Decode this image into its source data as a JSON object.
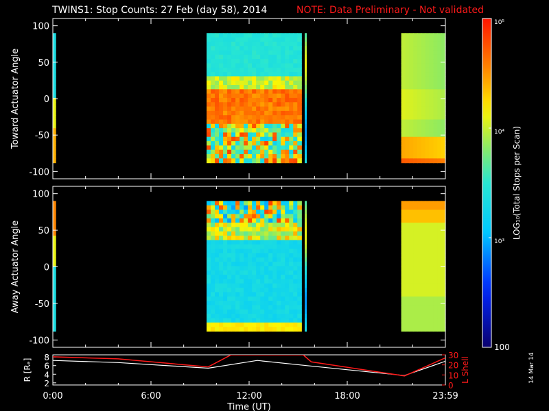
{
  "header": {
    "title": "TWINS1: Stop Counts: 27 Feb (day  58), 2014",
    "note": "NOTE: Data Preliminary - Not validated"
  },
  "side_date": "14 Mar 14",
  "colors": {
    "background": "#000000",
    "axes": "#ffffff",
    "note": "#ff1a1a",
    "r_line": "#ffffff",
    "l_line": "#ff1a1a"
  },
  "chart_data": [
    {
      "type": "heatmap",
      "title": "",
      "ylabel": "Toward Actuator Angle",
      "xlim": [
        0,
        24
      ],
      "ylim": [
        -110,
        110
      ],
      "yticks": [
        100,
        50,
        0,
        -50,
        -100
      ],
      "data_blocks": [
        {
          "x": [
            0.0,
            0.17
          ],
          "y": [
            -88,
            90
          ],
          "level": "high-bottom"
        },
        {
          "x": [
            9.4,
            15.2
          ],
          "y": [
            -88,
            90
          ],
          "level": "mixed"
        },
        {
          "x": [
            15.4,
            15.5
          ],
          "y": [
            -88,
            90
          ],
          "level": "mid"
        },
        {
          "x": [
            21.3,
            24.0
          ],
          "y": [
            -88,
            90
          ],
          "level": "warm"
        }
      ]
    },
    {
      "type": "heatmap",
      "title": "",
      "ylabel": "Away Actuator Angle",
      "xlim": [
        0,
        24
      ],
      "ylim": [
        -110,
        110
      ],
      "yticks": [
        100,
        50,
        0,
        -50,
        -100
      ],
      "data_blocks": [
        {
          "x": [
            0.0,
            0.17
          ],
          "y": [
            -88,
            90
          ],
          "level": "high-top"
        },
        {
          "x": [
            9.4,
            15.2
          ],
          "y": [
            -88,
            90
          ],
          "level": "cool"
        },
        {
          "x": [
            15.4,
            15.5
          ],
          "y": [
            -88,
            90
          ],
          "level": "mid"
        },
        {
          "x": [
            21.3,
            24.0
          ],
          "y": [
            -88,
            90
          ],
          "level": "warm"
        }
      ]
    },
    {
      "type": "line",
      "title": "",
      "xlabel": "Time (UT)",
      "ylabel_left": "R [Rₑ]",
      "ylabel_right": "L Shell",
      "xticks": [
        "0:00",
        "6:00",
        "12:00",
        "18:00",
        "23:59"
      ],
      "xtick_values": [
        0,
        6,
        12,
        18,
        24
      ],
      "xlim": [
        0,
        24
      ],
      "ylim_left": [
        1.5,
        8.5
      ],
      "yticks_left": [
        8,
        6,
        4,
        2
      ],
      "ylim_right": [
        0,
        30
      ],
      "yticks_right": [
        30,
        20,
        10,
        0
      ],
      "series": [
        {
          "axis": "left",
          "x": [
            0,
            4,
            9.5,
            12.5,
            15.5,
            21.5,
            24
          ],
          "values": [
            7.2,
            6.7,
            5.4,
            7.2,
            6.0,
            3.7,
            7.0
          ]
        },
        {
          "axis": "right",
          "x": [
            0,
            4,
            9.5,
            10.9,
            15.3,
            15.8,
            21.5,
            24
          ],
          "values": [
            28,
            26,
            18,
            30,
            30,
            23,
            9,
            27
          ]
        }
      ]
    },
    {
      "type": "colorbar",
      "label": "LOG₁₀(Total Stops per Scan)",
      "scale": "log",
      "range": [
        100,
        100000
      ],
      "tick_labels": [
        "10⁵",
        "10⁴",
        "10³",
        "100"
      ],
      "tick_values": [
        100000,
        10000,
        1000,
        100
      ]
    }
  ]
}
